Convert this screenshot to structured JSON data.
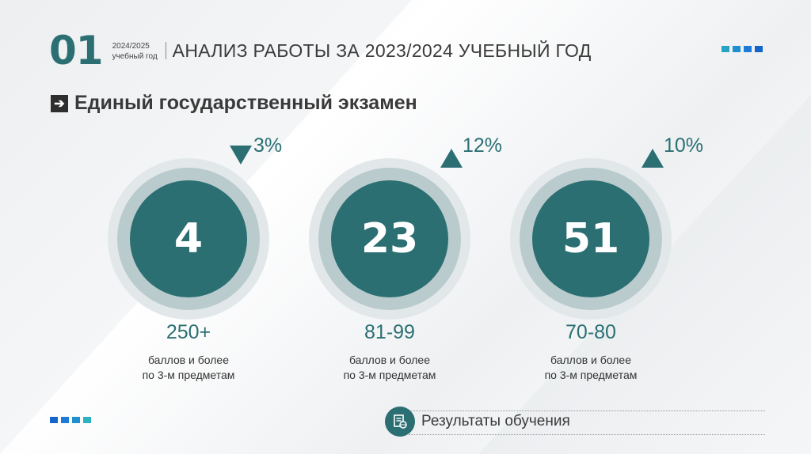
{
  "header": {
    "number": "01",
    "year_line1": "2024/2025",
    "year_line2": "учебный год",
    "title": "АНАЛИЗ РАБОТЫ ЗА 2023/2024 УЧЕБНЫЙ ГОД"
  },
  "section": {
    "arrow_icon": "arrow-right-icon",
    "title": "Единый государственный экзамен"
  },
  "stats": [
    {
      "value": "4",
      "change": "3%",
      "trend": "down",
      "range": "250+",
      "desc_line1": "баллов и более",
      "desc_line2": "по 3-м предметам"
    },
    {
      "value": "23",
      "change": "12%",
      "trend": "up",
      "range": "81-99",
      "desc_line1": "баллов и более",
      "desc_line2": "по 3-м предметам"
    },
    {
      "value": "51",
      "change": "10%",
      "trend": "up",
      "range": "70-80",
      "desc_line1": "баллов и более",
      "desc_line2": "по 3-м предметам"
    }
  ],
  "footer": {
    "icon": "document-globe-icon",
    "label": "Результаты обучения"
  },
  "colors": {
    "accent": "#2b6f73",
    "ring_outer": "#e2e8ea",
    "ring_inner": "#b9cbcd"
  }
}
